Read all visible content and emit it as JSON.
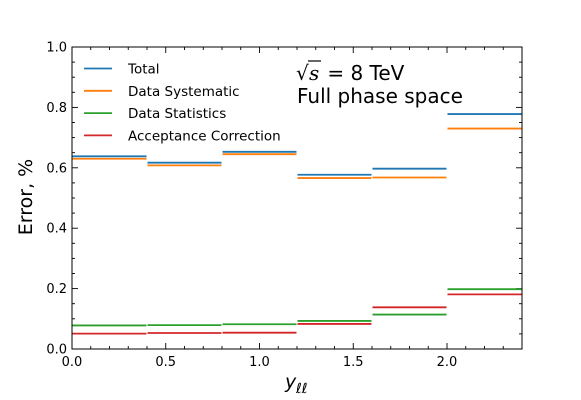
{
  "chart_data": {
    "type": "line",
    "step": true,
    "x_edges": [
      0.0,
      0.4,
      0.8,
      1.2,
      1.6,
      2.0,
      2.4
    ],
    "series": [
      {
        "name": "Total",
        "color": "#1f77b4",
        "values": [
          0.638,
          0.617,
          0.653,
          0.577,
          0.597,
          0.778
        ]
      },
      {
        "name": "Data Systematic",
        "color": "#ff7f0e",
        "values": [
          0.63,
          0.608,
          0.645,
          0.566,
          0.568,
          0.73
        ]
      },
      {
        "name": "Data Statistics",
        "color": "#2ca02c",
        "values": [
          0.078,
          0.079,
          0.082,
          0.093,
          0.114,
          0.198
        ]
      },
      {
        "name": "Acceptance Correction",
        "color": "#d62728",
        "values": [
          0.051,
          0.053,
          0.054,
          0.083,
          0.138,
          0.181
        ]
      }
    ],
    "xlabel": "y",
    "xlabel_sub": "ℓℓ",
    "ylabel": "Error, %",
    "xlim": [
      0.0,
      2.4
    ],
    "ylim": [
      0.0,
      1.0
    ],
    "xticks": [
      0.0,
      0.5,
      1.0,
      1.5,
      2.0
    ],
    "xtick_labels": [
      "0.0",
      "0.5",
      "1.0",
      "1.5",
      "2.0"
    ],
    "yticks": [
      0.0,
      0.2,
      0.4,
      0.6,
      0.8,
      1.0
    ],
    "ytick_labels": [
      "0.0",
      "0.2",
      "0.4",
      "0.6",
      "0.8",
      "1.0"
    ],
    "grid": false,
    "legend_position": "top-left",
    "annotation": {
      "sqrt_symbol": "√",
      "s_symbol": "s",
      "energy": " = 8 TeV",
      "phase_space": "Full phase space"
    }
  }
}
